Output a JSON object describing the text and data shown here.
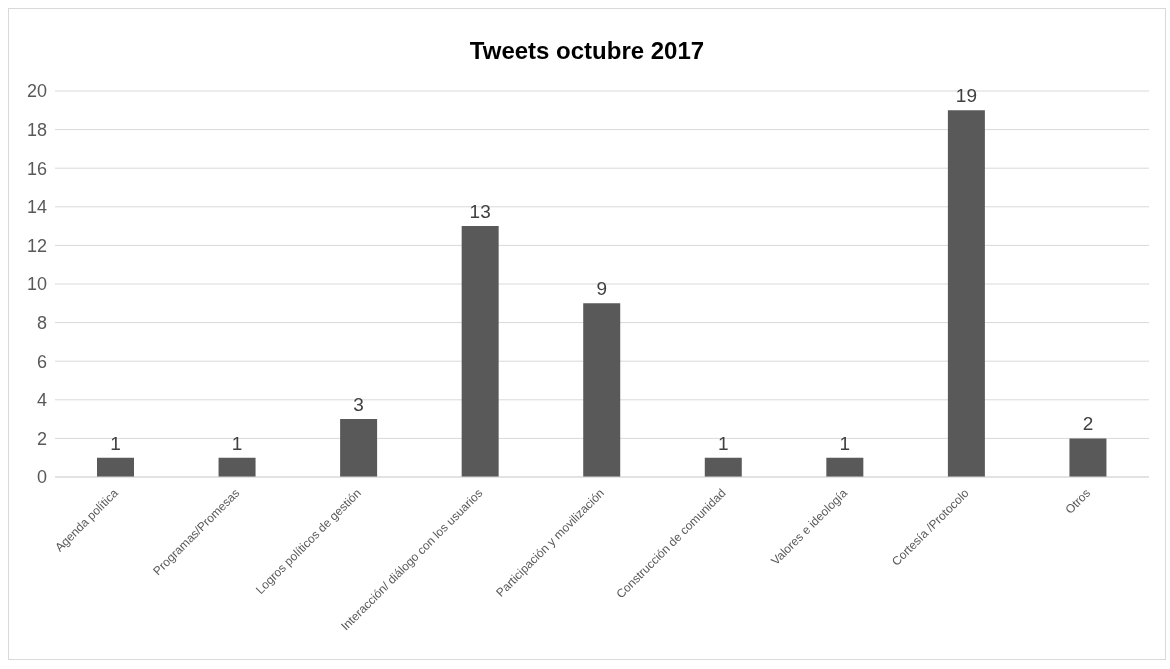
{
  "chart_data": {
    "type": "bar",
    "title": "Tweets octubre 2017",
    "categories": [
      "Agenda política",
      "Programas/Promesas",
      "Logros políticos de gestión",
      "Interacción/ diálogo con los usuarios",
      "Participación y movilización",
      "Construcción de comunidad",
      "Valores e ideología",
      "Cortesía /Protocolo",
      "Otros"
    ],
    "values": [
      1,
      1,
      3,
      13,
      9,
      1,
      1,
      19,
      2
    ],
    "color": "#595959",
    "ylim": [
      0,
      20
    ],
    "yticks": [
      0,
      2,
      4,
      6,
      8,
      10,
      12,
      14,
      16,
      18,
      20
    ],
    "grid": "y",
    "data_labels": true,
    "legend": false
  }
}
